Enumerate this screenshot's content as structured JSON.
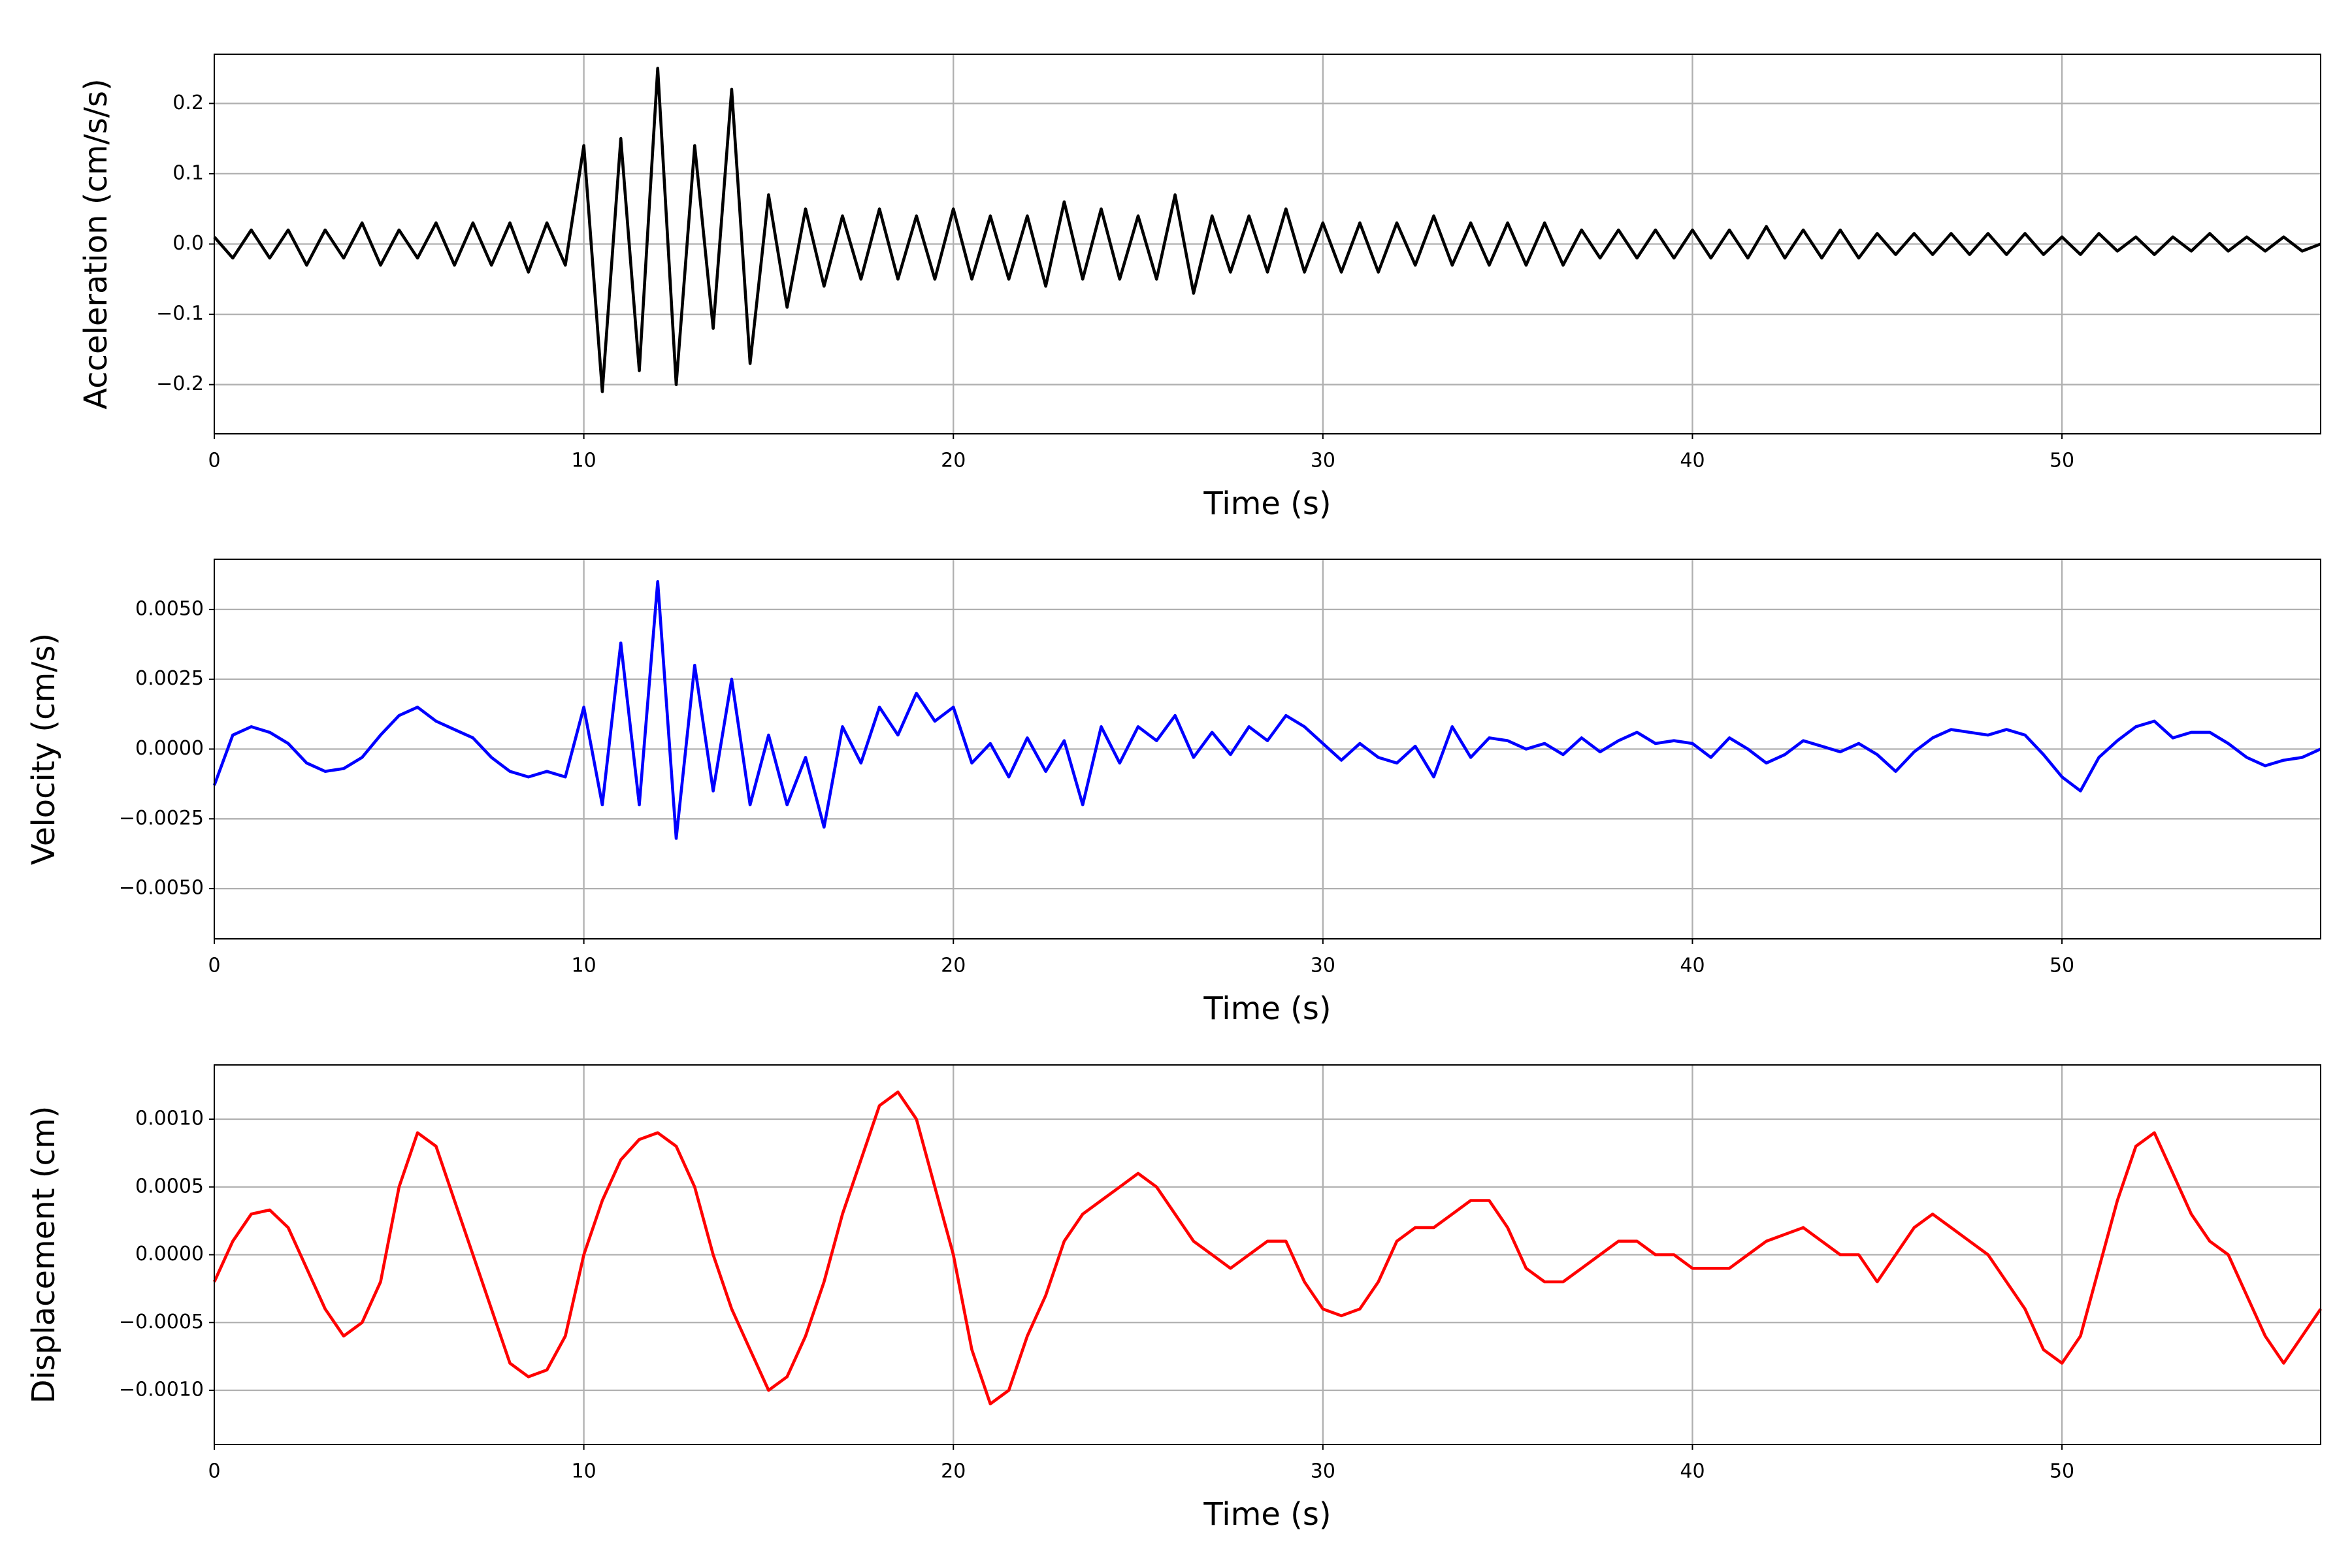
{
  "chart_data": [
    {
      "type": "line",
      "xlabel": "Time (s)",
      "ylabel": "Acceleration (cm/s/s)",
      "color": "#000000",
      "grid": true,
      "xlim": [
        0,
        57
      ],
      "xticks": [
        0,
        10,
        20,
        30,
        40,
        50
      ],
      "ylim": [
        -0.27,
        0.27
      ],
      "yticks": [
        {
          "value": -0.2,
          "label": "−0.2"
        },
        {
          "value": -0.1,
          "label": "−0.1"
        },
        {
          "value": 0,
          "label": "0.0"
        },
        0.1,
        0.2
      ],
      "x": [
        0,
        0.5,
        1,
        1.5,
        2,
        2.5,
        3,
        3.5,
        4,
        4.5,
        5,
        5.5,
        6,
        6.5,
        7,
        7.5,
        8,
        8.5,
        9,
        9.5,
        10,
        10.5,
        11,
        11.5,
        12,
        12.5,
        13,
        13.5,
        14,
        14.5,
        15,
        15.5,
        16,
        16.5,
        17,
        17.5,
        18,
        18.5,
        19,
        19.5,
        20,
        20.5,
        21,
        21.5,
        22,
        22.5,
        23,
        23.5,
        24,
        24.5,
        25,
        25.5,
        26,
        26.5,
        27,
        27.5,
        28,
        28.5,
        29,
        29.5,
        30,
        30.5,
        31,
        31.5,
        32,
        32.5,
        33,
        33.5,
        34,
        34.5,
        35,
        35.5,
        36,
        36.5,
        37,
        37.5,
        38,
        38.5,
        39,
        39.5,
        40,
        40.5,
        41,
        41.5,
        42,
        42.5,
        43,
        43.5,
        44,
        44.5,
        45,
        45.5,
        46,
        46.5,
        47,
        47.5,
        48,
        48.5,
        49,
        49.5,
        50,
        50.5,
        51,
        51.5,
        52,
        52.5,
        53,
        53.5,
        54,
        54.5,
        55,
        55.5,
        56,
        56.5,
        57
      ],
      "values": [
        0.01,
        -0.02,
        0.02,
        -0.02,
        0.02,
        -0.03,
        0.02,
        -0.02,
        0.03,
        -0.03,
        0.02,
        -0.02,
        0.03,
        -0.03,
        0.03,
        -0.03,
        0.03,
        -0.04,
        0.03,
        -0.03,
        0.14,
        -0.21,
        0.15,
        -0.18,
        0.25,
        -0.2,
        0.14,
        -0.12,
        0.22,
        -0.17,
        0.07,
        -0.09,
        0.05,
        -0.06,
        0.04,
        -0.05,
        0.05,
        -0.05,
        0.04,
        -0.05,
        0.05,
        -0.05,
        0.04,
        -0.05,
        0.04,
        -0.06,
        0.06,
        -0.05,
        0.05,
        -0.05,
        0.04,
        -0.05,
        0.07,
        -0.07,
        0.04,
        -0.04,
        0.04,
        -0.04,
        0.05,
        -0.04,
        0.03,
        -0.04,
        0.03,
        -0.04,
        0.03,
        -0.03,
        0.04,
        -0.03,
        0.03,
        -0.03,
        0.03,
        -0.03,
        0.03,
        -0.03,
        0.02,
        -0.02,
        0.02,
        -0.02,
        0.02,
        -0.02,
        0.02,
        -0.02,
        0.02,
        -0.02,
        0.025,
        -0.02,
        0.02,
        -0.02,
        0.02,
        -0.02,
        0.015,
        -0.015,
        0.015,
        -0.015,
        0.015,
        -0.015,
        0.015,
        -0.015,
        0.015,
        -0.015,
        0.01,
        -0.015,
        0.015,
        -0.01,
        0.01,
        -0.015,
        0.01,
        -0.01,
        0.015,
        -0.01,
        0.01,
        -0.01,
        0.01,
        -0.01,
        0.0
      ]
    },
    {
      "type": "line",
      "xlabel": "Time (s)",
      "ylabel": "Velocity (cm/s)",
      "color": "#0000ff",
      "grid": true,
      "xlim": [
        0,
        57
      ],
      "xticks": [
        0,
        10,
        20,
        30,
        40,
        50
      ],
      "ylim": [
        -0.0068,
        0.0068
      ],
      "yticks": [
        {
          "value": -0.005,
          "label": "−0.0050"
        },
        {
          "value": -0.0025,
          "label": "−0.0025"
        },
        {
          "value": 0,
          "label": "0.0000"
        },
        {
          "value": 0.0025,
          "label": "0.0025"
        },
        {
          "value": 0.005,
          "label": "0.0050"
        }
      ],
      "x": [
        0,
        0.5,
        1,
        1.5,
        2,
        2.5,
        3,
        3.5,
        4,
        4.5,
        5,
        5.5,
        6,
        6.5,
        7,
        7.5,
        8,
        8.5,
        9,
        9.5,
        10,
        10.5,
        11,
        11.5,
        12,
        12.5,
        13,
        13.5,
        14,
        14.5,
        15,
        15.5,
        16,
        16.5,
        17,
        17.5,
        18,
        18.5,
        19,
        19.5,
        20,
        20.5,
        21,
        21.5,
        22,
        22.5,
        23,
        23.5,
        24,
        24.5,
        25,
        25.5,
        26,
        26.5,
        27,
        27.5,
        28,
        28.5,
        29,
        29.5,
        30,
        30.5,
        31,
        31.5,
        32,
        32.5,
        33,
        33.5,
        34,
        34.5,
        35,
        35.5,
        36,
        36.5,
        37,
        37.5,
        38,
        38.5,
        39,
        39.5,
        40,
        40.5,
        41,
        41.5,
        42,
        42.5,
        43,
        43.5,
        44,
        44.5,
        45,
        45.5,
        46,
        46.5,
        47,
        47.5,
        48,
        48.5,
        49,
        49.5,
        50,
        50.5,
        51,
        51.5,
        52,
        52.5,
        53,
        53.5,
        54,
        54.5,
        55,
        55.5,
        56,
        56.5,
        57
      ],
      "values": [
        -0.0013,
        0.0005,
        0.0008,
        0.0006,
        0.0002,
        -0.0005,
        -0.0008,
        -0.0007,
        -0.0003,
        0.0005,
        0.0012,
        0.0015,
        0.001,
        0.0007,
        0.0004,
        -0.0003,
        -0.0008,
        -0.001,
        -0.0008,
        -0.001,
        0.0015,
        -0.002,
        0.0038,
        -0.002,
        0.006,
        -0.0032,
        0.003,
        -0.0015,
        0.0025,
        -0.002,
        0.0005,
        -0.002,
        -0.0003,
        -0.0028,
        0.0008,
        -0.0005,
        0.0015,
        0.0005,
        0.002,
        0.001,
        0.0015,
        -0.0005,
        0.0002,
        -0.001,
        0.0004,
        -0.0008,
        0.0003,
        -0.002,
        0.0008,
        -0.0005,
        0.0008,
        0.0003,
        0.0012,
        -0.0003,
        0.0006,
        -0.0002,
        0.0008,
        0.0003,
        0.0012,
        0.0008,
        0.0002,
        -0.0004,
        0.0002,
        -0.0003,
        -0.0005,
        0.0001,
        -0.001,
        0.0008,
        -0.0003,
        0.0004,
        0.0003,
        0.0,
        0.0002,
        -0.0002,
        0.0004,
        -0.0001,
        0.0003,
        0.0006,
        0.0002,
        0.0003,
        0.0002,
        -0.0003,
        0.0004,
        0.0,
        -0.0005,
        -0.0002,
        0.0003,
        0.0001,
        -0.0001,
        0.0002,
        -0.0002,
        -0.0008,
        -0.0001,
        0.0004,
        0.0007,
        0.0006,
        0.0005,
        0.0007,
        0.0005,
        -0.0002,
        -0.001,
        -0.0015,
        -0.0003,
        0.0003,
        0.0008,
        0.001,
        0.0004,
        0.0006,
        0.0006,
        0.0002,
        -0.0003,
        -0.0006,
        -0.0004,
        -0.0003,
        0.0
      ]
    },
    {
      "type": "line",
      "xlabel": "Time (s)",
      "ylabel": "Displacement (cm)",
      "color": "#ff0000",
      "grid": true,
      "xlim": [
        0,
        57
      ],
      "xticks": [
        0,
        10,
        20,
        30,
        40,
        50
      ],
      "ylim": [
        -0.0014,
        0.0014
      ],
      "yticks": [
        {
          "value": -0.001,
          "label": "−0.0010"
        },
        {
          "value": -0.0005,
          "label": "−0.0005"
        },
        {
          "value": 0,
          "label": "0.0000"
        },
        {
          "value": 0.0005,
          "label": "0.0005"
        },
        {
          "value": 0.001,
          "label": "0.0010"
        }
      ],
      "x": [
        0,
        0.5,
        1,
        1.5,
        2,
        2.5,
        3,
        3.5,
        4,
        4.5,
        5,
        5.5,
        6,
        6.5,
        7,
        7.5,
        8,
        8.5,
        9,
        9.5,
        10,
        10.5,
        11,
        11.5,
        12,
        12.5,
        13,
        13.5,
        14,
        14.5,
        15,
        15.5,
        16,
        16.5,
        17,
        17.5,
        18,
        18.5,
        19,
        19.5,
        20,
        20.5,
        21,
        21.5,
        22,
        22.5,
        23,
        23.5,
        24,
        24.5,
        25,
        25.5,
        26,
        26.5,
        27,
        27.5,
        28,
        28.5,
        29,
        29.5,
        30,
        30.5,
        31,
        31.5,
        32,
        32.5,
        33,
        33.5,
        34,
        34.5,
        35,
        35.5,
        36,
        36.5,
        37,
        37.5,
        38,
        38.5,
        39,
        39.5,
        40,
        40.5,
        41,
        41.5,
        42,
        42.5,
        43,
        43.5,
        44,
        44.5,
        45,
        45.5,
        46,
        46.5,
        47,
        47.5,
        48,
        48.5,
        49,
        49.5,
        50,
        50.5,
        51,
        51.5,
        52,
        52.5,
        53,
        53.5,
        54,
        54.5,
        55,
        55.5,
        56,
        56.5,
        57
      ],
      "values": [
        -0.0002,
        0.0001,
        0.0003,
        0.00033,
        0.0002,
        -0.0001,
        -0.0004,
        -0.0006,
        -0.0005,
        -0.0002,
        0.0005,
        0.0009,
        0.0008,
        0.0004,
        0.0,
        -0.0004,
        -0.0008,
        -0.0009,
        -0.00085,
        -0.0006,
        0.0,
        0.0004,
        0.0007,
        0.00085,
        0.0009,
        0.0008,
        0.0005,
        0.0,
        -0.0004,
        -0.0007,
        -0.001,
        -0.0009,
        -0.0006,
        -0.0002,
        0.0003,
        0.0007,
        0.0011,
        0.0012,
        0.001,
        0.0005,
        0.0,
        -0.0007,
        -0.0011,
        -0.001,
        -0.0006,
        -0.0003,
        0.0001,
        0.0003,
        0.0004,
        0.0005,
        0.0006,
        0.0005,
        0.0003,
        0.0001,
        0.0,
        -0.0001,
        0.0,
        0.0001,
        0.0001,
        -0.0002,
        -0.0004,
        -0.00045,
        -0.0004,
        -0.0002,
        0.0001,
        0.0002,
        0.0002,
        0.0003,
        0.0004,
        0.0004,
        0.0002,
        -0.0001,
        -0.0002,
        -0.0002,
        -0.0001,
        0.0,
        0.0001,
        0.0001,
        0.0,
        0.0,
        -0.0001,
        -0.0001,
        -0.0001,
        0.0,
        0.0001,
        0.00015,
        0.0002,
        0.0001,
        0.0,
        0.0,
        -0.0002,
        0.0,
        0.0002,
        0.0003,
        0.0002,
        0.0001,
        0.0,
        -0.0002,
        -0.0004,
        -0.0007,
        -0.0008,
        -0.0006,
        -0.0001,
        0.0004,
        0.0008,
        0.0009,
        0.0006,
        0.0003,
        0.0001,
        0.0,
        -0.0003,
        -0.0006,
        -0.0008,
        -0.0006,
        -0.0004
      ]
    }
  ]
}
